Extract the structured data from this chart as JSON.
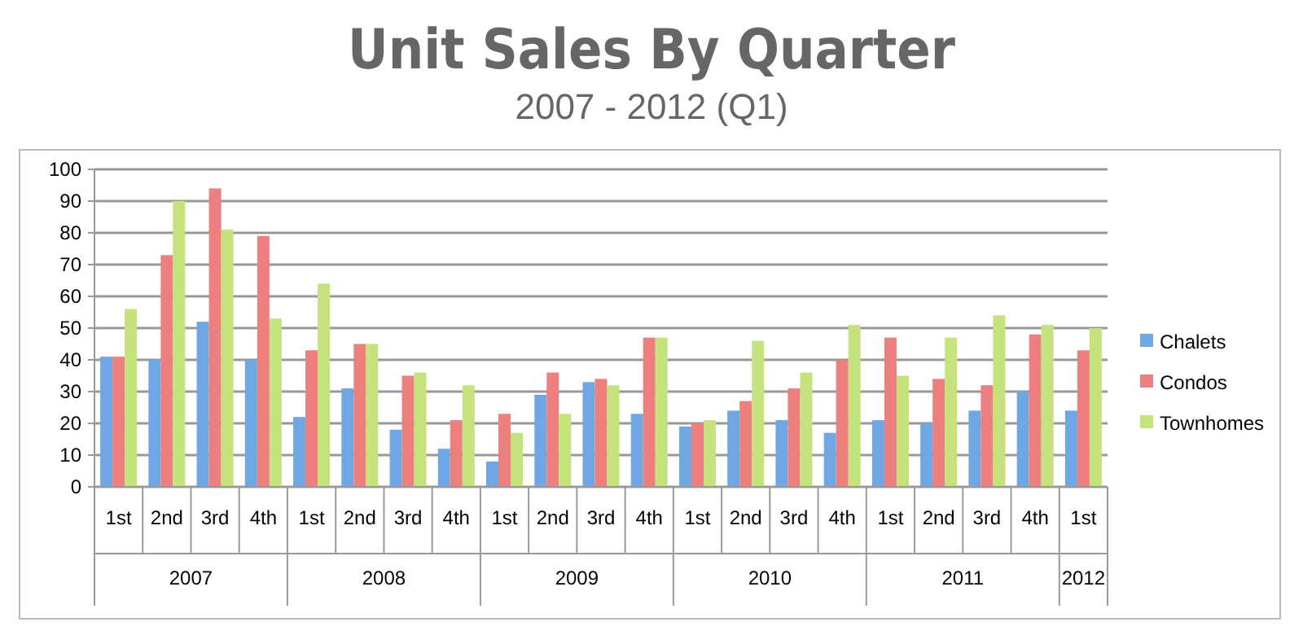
{
  "chart_data": {
    "type": "bar",
    "title": "Unit Sales By Quarter",
    "subtitle": "2007 - 2012 (Q1)",
    "categories": [
      "1st",
      "2nd",
      "3rd",
      "4th",
      "1st",
      "2nd",
      "3rd",
      "4th",
      "1st",
      "2nd",
      "3rd",
      "4th",
      "1st",
      "2nd",
      "3rd",
      "4th",
      "1st",
      "2nd",
      "3rd",
      "4th",
      "1st"
    ],
    "annotations": [
      "2007",
      "2008",
      "2009",
      "2010",
      "2011",
      "2012"
    ],
    "series": [
      {
        "name": "Chalets",
        "color": "#6fa6e4",
        "values": [
          41,
          40,
          52,
          40,
          22,
          31,
          18,
          12,
          8,
          29,
          33,
          23,
          19,
          24,
          21,
          17,
          21,
          20,
          24,
          30,
          24
        ]
      },
      {
        "name": "Condos",
        "color": "#ee7f7f",
        "values": [
          41,
          73,
          94,
          79,
          43,
          45,
          35,
          21,
          23,
          36,
          34,
          47,
          20,
          27,
          31,
          40,
          47,
          34,
          32,
          48,
          43
        ]
      },
      {
        "name": "Townhomes",
        "color": "#c4e37c",
        "values": [
          56,
          90,
          81,
          53,
          64,
          45,
          36,
          32,
          17,
          23,
          32,
          47,
          21,
          46,
          36,
          51,
          35,
          47,
          54,
          51,
          50
        ]
      }
    ],
    "ylim": [
      0,
      100
    ],
    "yticks": [
      0,
      10,
      20,
      30,
      40,
      50,
      60,
      70,
      80,
      90,
      100
    ],
    "grid": "y",
    "legend": "right"
  }
}
